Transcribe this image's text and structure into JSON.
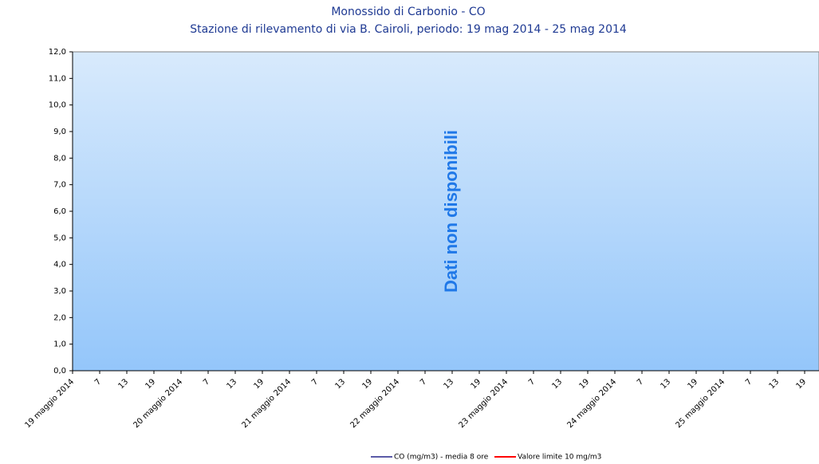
{
  "chart_data": {
    "type": "line",
    "title": "Monossido di Carbonio - CO",
    "subtitle": "Stazione di rilevamento di via B. Cairoli, periodo: 19 mag 2014 - 25 mag 2014",
    "annotation": "Dati non disponibili",
    "categories": [
      "19 maggio 2014",
      "7",
      "13",
      "19",
      "20 maggio 2014",
      "7",
      "13",
      "19",
      "21 maggio 2014",
      "7",
      "13",
      "19",
      "22 maggio 2014",
      "7",
      "13",
      "19",
      "23 maggio 2014",
      "7",
      "13",
      "19",
      "24 maggio 2014",
      "7",
      "13",
      "19",
      "25 maggio 2014",
      "7",
      "13",
      "19"
    ],
    "series": [
      {
        "name": "CO (mg/m3) - media 8 ore",
        "color": "#5a5aa8",
        "values": [
          null,
          null,
          null,
          null,
          null,
          null,
          null,
          null,
          null,
          null,
          null,
          null,
          null,
          null,
          null,
          null,
          null,
          null,
          null,
          null,
          null,
          null,
          null,
          null,
          null,
          null,
          null,
          null
        ]
      },
      {
        "name": "Valore limite 10 mg/m3",
        "color": "#ff0000",
        "values": [
          null,
          null,
          null,
          null,
          null,
          null,
          null,
          null,
          null,
          null,
          null,
          null,
          null,
          null,
          null,
          null,
          null,
          null,
          null,
          null,
          null,
          null,
          null,
          null,
          null,
          null,
          null,
          null
        ]
      }
    ],
    "ylim": [
      0,
      12
    ],
    "yticks": [
      {
        "value": 0,
        "label": "0,0"
      },
      {
        "value": 1,
        "label": "1,0"
      },
      {
        "value": 2,
        "label": "2,0"
      },
      {
        "value": 3,
        "label": "3,0"
      },
      {
        "value": 4,
        "label": "4,0"
      },
      {
        "value": 5,
        "label": "5,0"
      },
      {
        "value": 6,
        "label": "6,0"
      },
      {
        "value": 7,
        "label": "7,0"
      },
      {
        "value": 8,
        "label": "8,0"
      },
      {
        "value": 9,
        "label": "9,0"
      },
      {
        "value": 10,
        "label": "10,0"
      },
      {
        "value": 11,
        "label": "11,0"
      },
      {
        "value": 12,
        "label": "12,0"
      }
    ],
    "grid": false
  }
}
